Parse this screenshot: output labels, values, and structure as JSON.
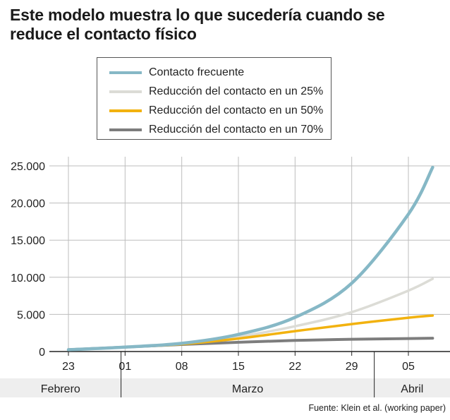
{
  "title": "Este modelo muestra lo que sucedería cuando se reduce el contacto físico",
  "source": "Fuente: Klein et al. (working paper)",
  "colors": {
    "s0": "#86b8c6",
    "s1": "#dcdcd6",
    "s2": "#f2b20f",
    "s3": "#7d7d7d",
    "grid": "#bdbdbd",
    "axis": "#222222",
    "month_band": "#eeeeee"
  },
  "chart_data": {
    "type": "line",
    "title": "Este modelo muestra lo que sucedería cuando se reduce el contacto físico",
    "xlabel": "",
    "ylabel": "",
    "ylim": [
      0,
      25000
    ],
    "xlim": [
      "2020-02-23",
      "2020-04-08"
    ],
    "yticks": [
      0,
      5000,
      10000,
      15000,
      20000,
      25000
    ],
    "ytick_labels": [
      "0",
      "5.000",
      "10.000",
      "15.000",
      "20.000",
      "25.000"
    ],
    "xticks": [
      "2020-02-23",
      "2020-03-01",
      "2020-03-08",
      "2020-03-15",
      "2020-03-22",
      "2020-03-29",
      "2020-04-05"
    ],
    "xtick_labels": [
      "23",
      "01",
      "08",
      "15",
      "22",
      "29",
      "05"
    ],
    "months": [
      "Febrero",
      "Marzo",
      "Abril"
    ],
    "grid": true,
    "legend_position": "top",
    "x": [
      "2020-02-23",
      "2020-03-01",
      "2020-03-08",
      "2020-03-15",
      "2020-03-22",
      "2020-03-29",
      "2020-04-05",
      "2020-04-08"
    ],
    "series": [
      {
        "name": "Contacto frecuente",
        "values": [
          250,
          600,
          1100,
          2300,
          4600,
          9200,
          18500,
          24800
        ]
      },
      {
        "name": "Reducción del contacto en un 25%",
        "values": [
          250,
          600,
          1050,
          2000,
          3400,
          5300,
          8200,
          9800
        ]
      },
      {
        "name": "Reducción del contacto en un 50%",
        "values": [
          250,
          600,
          1000,
          1750,
          2750,
          3700,
          4550,
          4850
        ]
      },
      {
        "name": "Reducción del contacto en un 70%",
        "values": [
          250,
          600,
          950,
          1250,
          1500,
          1650,
          1750,
          1800
        ]
      }
    ]
  }
}
